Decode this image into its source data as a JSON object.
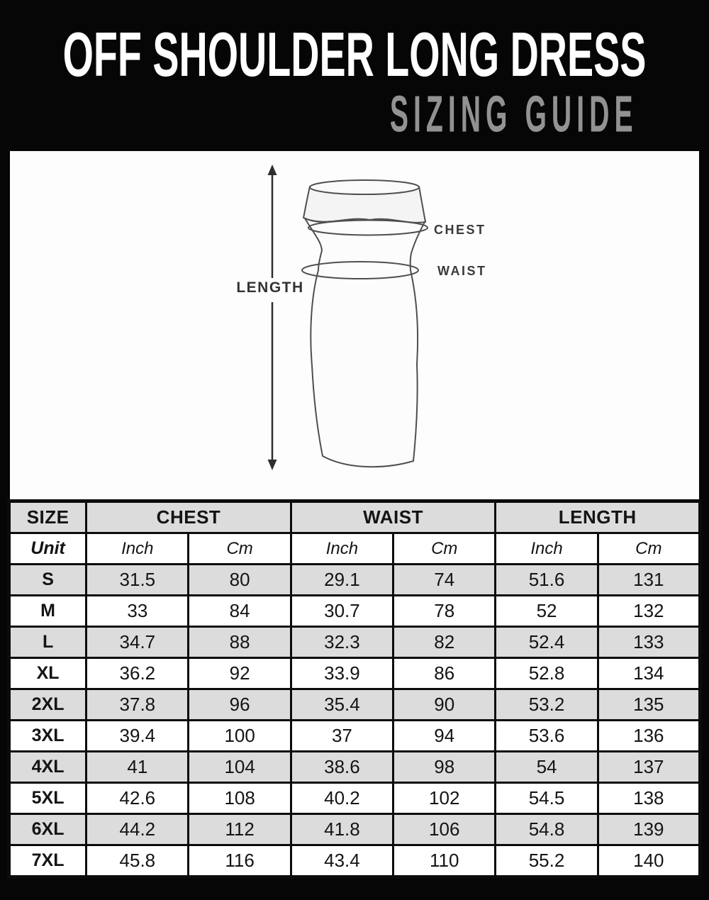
{
  "header": {
    "title": "OFF SHOULDER LONG DRESS",
    "subtitle": "SIZING GUIDE",
    "title_color": "#ffffff",
    "subtitle_color": "#929292",
    "background": "#060606"
  },
  "diagram": {
    "length_label": "LENGTH",
    "chest_label": "CHEST",
    "waist_label": "WAIST",
    "panel_background": "#fdfdfd",
    "line_color": "#4f4f4f"
  },
  "table": {
    "group_headers": [
      {
        "label": "SIZE"
      },
      {
        "label": "CHEST"
      },
      {
        "label": "WAIST"
      },
      {
        "label": "LENGTH"
      }
    ],
    "unit_row": {
      "size": "Unit",
      "cells": [
        "Inch",
        "Cm",
        "Inch",
        "Cm",
        "Inch",
        "Cm"
      ]
    },
    "rows": [
      {
        "size": "S",
        "values": [
          "31.5",
          "80",
          "29.1",
          "74",
          "51.6",
          "131"
        ]
      },
      {
        "size": "M",
        "values": [
          "33",
          "84",
          "30.7",
          "78",
          "52",
          "132"
        ]
      },
      {
        "size": "L",
        "values": [
          "34.7",
          "88",
          "32.3",
          "82",
          "52.4",
          "133"
        ]
      },
      {
        "size": "XL",
        "values": [
          "36.2",
          "92",
          "33.9",
          "86",
          "52.8",
          "134"
        ]
      },
      {
        "size": "2XL",
        "values": [
          "37.8",
          "96",
          "35.4",
          "90",
          "53.2",
          "135"
        ]
      },
      {
        "size": "3XL",
        "values": [
          "39.4",
          "100",
          "37",
          "94",
          "53.6",
          "136"
        ]
      },
      {
        "size": "4XL",
        "values": [
          "41",
          "104",
          "38.6",
          "98",
          "54",
          "137"
        ]
      },
      {
        "size": "5XL",
        "values": [
          "42.6",
          "108",
          "40.2",
          "102",
          "54.5",
          "138"
        ]
      },
      {
        "size": "6XL",
        "values": [
          "44.2",
          "112",
          "41.8",
          "106",
          "54.8",
          "139"
        ]
      },
      {
        "size": "7XL",
        "values": [
          "45.8",
          "116",
          "43.4",
          "110",
          "55.2",
          "140"
        ]
      }
    ],
    "colors": {
      "row_alt": "#dcdcdc",
      "row_base": "#ffffff",
      "border": "#0c0c0c"
    }
  }
}
